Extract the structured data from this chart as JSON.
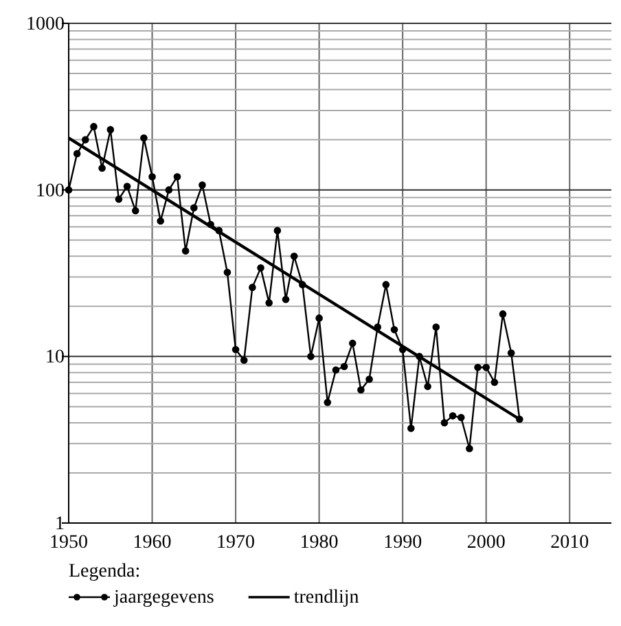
{
  "chart_data": {
    "type": "line",
    "legend_title": "Legenda:",
    "legend": "bottom",
    "grid": true,
    "log": "y",
    "xlim": [
      1950,
      2015
    ],
    "xticks": [
      1950,
      1960,
      1970,
      1980,
      1990,
      2000,
      2010
    ],
    "ylim": [
      1,
      1000
    ],
    "yticks": [
      1,
      {
        "value": 2,
        "label": null
      },
      {
        "value": 3,
        "label": null
      },
      {
        "value": 4,
        "label": null
      },
      {
        "value": 5,
        "label": null
      },
      {
        "value": 6,
        "label": null
      },
      {
        "value": 7,
        "label": null
      },
      {
        "value": 8,
        "label": null
      },
      {
        "value": 9,
        "label": null
      },
      10,
      {
        "value": 20,
        "label": null
      },
      {
        "value": 30,
        "label": null
      },
      {
        "value": 40,
        "label": null
      },
      {
        "value": 50,
        "label": null
      },
      {
        "value": 60,
        "label": null
      },
      {
        "value": 70,
        "label": null
      },
      {
        "value": 80,
        "label": null
      },
      {
        "value": 90,
        "label": null
      },
      100,
      {
        "value": 200,
        "label": null
      },
      {
        "value": 300,
        "label": null
      },
      {
        "value": 400,
        "label": null
      },
      {
        "value": 500,
        "label": null
      },
      {
        "value": 600,
        "label": null
      },
      {
        "value": 700,
        "label": null
      },
      {
        "value": 800,
        "label": null
      },
      {
        "value": 900,
        "label": null
      },
      1000
    ],
    "series": [
      {
        "name": "jaargegevens",
        "color": "#000000",
        "marker": "circle",
        "x": [
          1950,
          1951,
          1952,
          1953,
          1954,
          1955,
          1956,
          1957,
          1958,
          1959,
          1960,
          1961,
          1962,
          1963,
          1964,
          1965,
          1966,
          1967,
          1968,
          1969,
          1970,
          1971,
          1972,
          1973,
          1974,
          1975,
          1976,
          1977,
          1978,
          1979,
          1980,
          1981,
          1982,
          1983,
          1984,
          1985,
          1986,
          1987,
          1988,
          1989,
          1990,
          1991,
          1992,
          1993,
          1994,
          1995,
          1996,
          1997,
          1998,
          1999,
          2000,
          2001,
          2002,
          2003,
          2004
        ],
        "values": [
          100,
          165,
          200,
          240,
          135,
          230,
          88,
          105,
          75,
          205,
          120,
          65,
          100,
          120,
          43,
          78,
          107,
          62,
          57,
          32,
          11,
          9.5,
          26,
          34,
          21,
          57,
          22,
          40,
          27,
          10,
          17,
          5.3,
          8.3,
          8.7,
          12,
          6.3,
          7.3,
          15,
          27,
          14.5,
          11,
          3.7,
          10,
          6.6,
          15,
          4.0,
          4.4,
          4.3,
          2.8,
          8.6,
          8.6,
          7.0,
          18,
          10.5,
          4.2
        ]
      },
      {
        "name": "trendlijn",
        "color": "#000000",
        "marker": "none",
        "x": [
          1950,
          2004
        ],
        "values": [
          205,
          4.2
        ]
      }
    ]
  }
}
